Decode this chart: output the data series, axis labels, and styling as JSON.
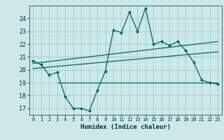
{
  "bg_color": "#cce8e8",
  "grid_color": "#aacccc",
  "line_color": "#006666",
  "xlabel": "Humidex (Indice chaleur)",
  "xlim": [
    -0.5,
    23.5
  ],
  "ylim": [
    16.5,
    25.0
  ],
  "yticks": [
    17,
    18,
    19,
    20,
    21,
    22,
    23,
    24
  ],
  "xticks": [
    0,
    1,
    2,
    3,
    4,
    5,
    6,
    7,
    8,
    9,
    10,
    11,
    12,
    13,
    14,
    15,
    16,
    17,
    18,
    19,
    20,
    21,
    22,
    23
  ],
  "main_series_x": [
    0,
    1,
    2,
    3,
    4,
    5,
    6,
    7,
    8,
    9,
    10,
    11,
    12,
    13,
    14,
    15,
    16,
    17,
    18,
    19,
    20,
    21,
    22,
    23
  ],
  "main_series_y": [
    20.7,
    20.4,
    19.6,
    19.8,
    17.9,
    17.0,
    17.0,
    16.8,
    18.4,
    19.9,
    23.1,
    22.9,
    24.5,
    23.0,
    24.8,
    22.0,
    22.2,
    21.9,
    22.2,
    21.5,
    20.6,
    19.2,
    19.0,
    18.9
  ],
  "flat_line_y": 19.0,
  "flat_line_x_start": 3,
  "flat_line_x_end": 23,
  "trend_line1_x": [
    0,
    23
  ],
  "trend_line1_y": [
    20.5,
    22.2
  ],
  "trend_line2_x": [
    0,
    23
  ],
  "trend_line2_y": [
    20.1,
    21.4
  ]
}
